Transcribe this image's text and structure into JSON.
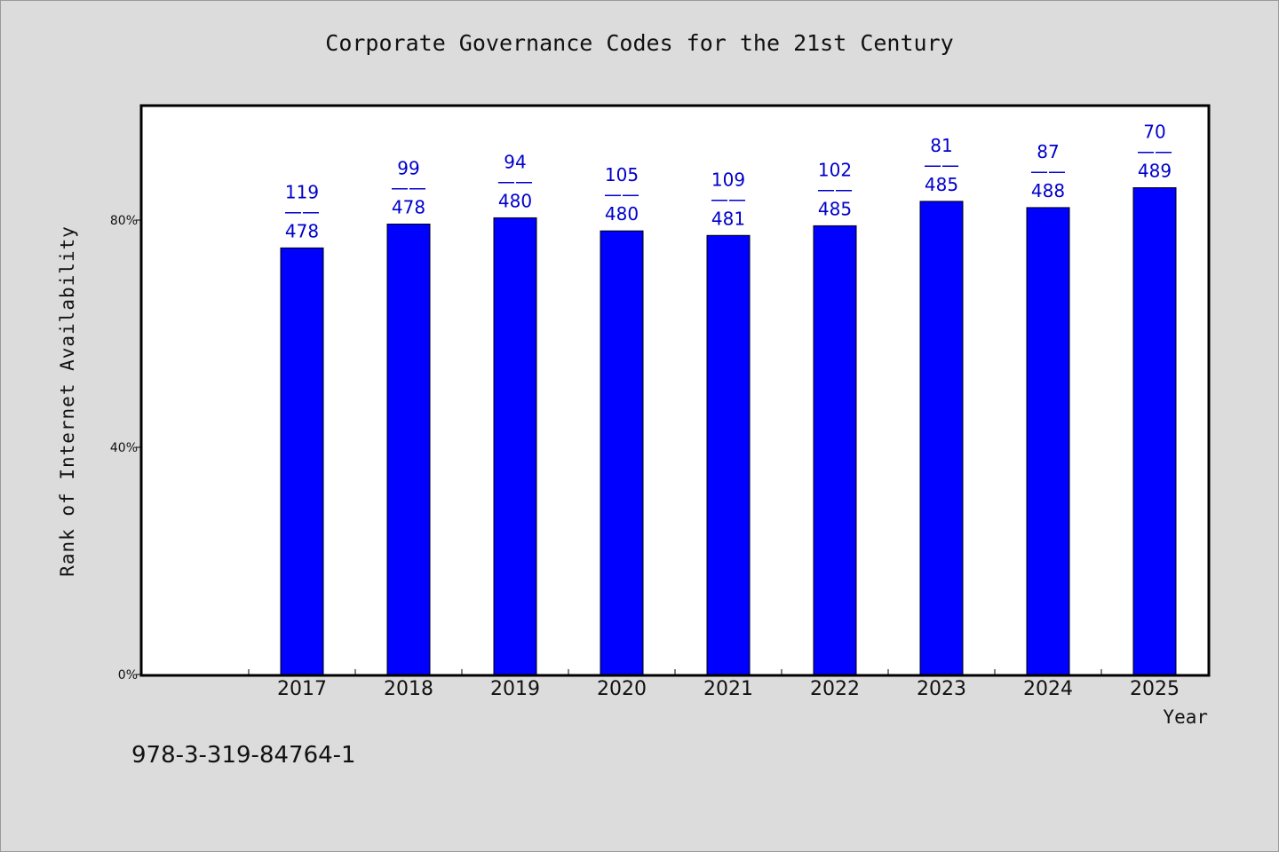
{
  "page_title": "Corporate Governance Codes for the 21st Century",
  "footer_code": "978-3-319-84764-1",
  "colors": {
    "bar": "#0000ff",
    "label": "#0000cc",
    "background": "#dcdcdc",
    "plot_bg": "#ffffff"
  },
  "chart_data": {
    "type": "bar",
    "title": "Corporate Governance Codes for the 21st Century",
    "xlabel": "Year",
    "ylabel": "Rank of Internet Availability",
    "categories": [
      "2017",
      "2018",
      "2019",
      "2020",
      "2021",
      "2022",
      "2023",
      "2024",
      "2025"
    ],
    "values": [
      75.1,
      79.3,
      80.4,
      78.1,
      77.3,
      79.0,
      83.3,
      82.2,
      85.7
    ],
    "ranks": [
      "119",
      "99",
      "94",
      "105",
      "109",
      "102",
      "81",
      "87",
      "70"
    ],
    "totals": [
      "478",
      "478",
      "480",
      "480",
      "481",
      "485",
      "485",
      "488",
      "489"
    ],
    "separator": "——",
    "ylim": [
      0,
      100
    ],
    "yticks": [
      0,
      40,
      80
    ],
    "ytick_labels": [
      "0%",
      "40%",
      "80%"
    ],
    "grid": false,
    "legend": "none"
  }
}
